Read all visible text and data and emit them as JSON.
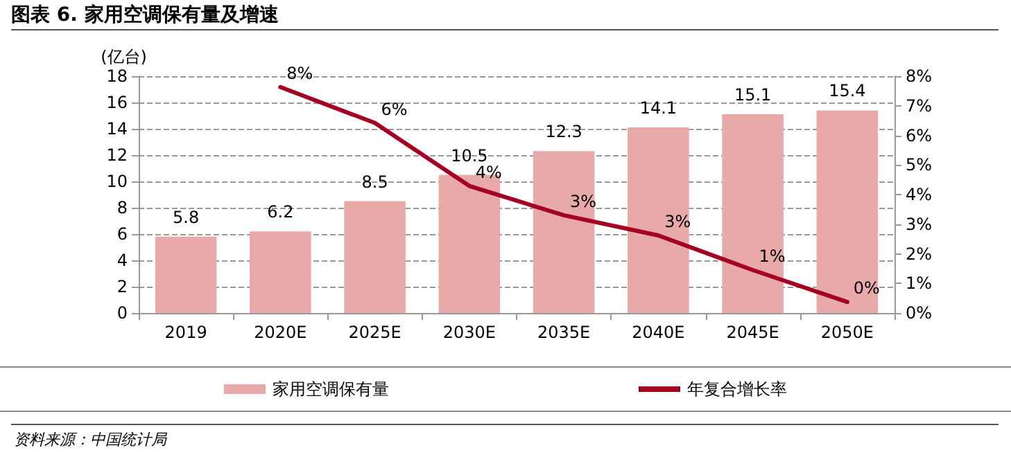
{
  "chart_data": {
    "type": "bar",
    "title": "图表 6. 家用空调保有量及增速",
    "ylabel": "(亿台)",
    "categories": [
      "2019",
      "2020E",
      "2025E",
      "2030E",
      "2035E",
      "2040E",
      "2045E",
      "2050E"
    ],
    "series": [
      {
        "name": "家用空调保有量",
        "color": "#e8a9a9",
        "values": [
          5.8,
          6.2,
          8.5,
          10.5,
          12.3,
          14.1,
          15.1,
          15.4
        ],
        "data_labels": true
      },
      {
        "name": "年复合增长率",
        "type": "line",
        "axis": "y2",
        "color": "#a50021",
        "values": [
          null,
          7.63,
          6.42,
          4.29,
          3.3,
          2.62,
          1.45,
          0.37
        ],
        "value_labels": [
          null,
          "8%",
          "6%",
          "4%",
          "3%",
          "3%",
          "1%",
          "0%"
        ]
      }
    ],
    "ylim": [
      0,
      18
    ],
    "yticks": [
      0,
      2,
      4,
      6,
      8,
      10,
      12,
      14,
      16,
      18
    ],
    "y2lim": [
      0,
      8
    ],
    "y2ticks": [
      {
        "value": 0,
        "label": "0%"
      },
      {
        "value": 1,
        "label": "1%"
      },
      {
        "value": 2,
        "label": "2%"
      },
      {
        "value": 3,
        "label": "3%"
      },
      {
        "value": 4,
        "label": "4%"
      },
      {
        "value": 5,
        "label": "5%"
      },
      {
        "value": 6,
        "label": "6%"
      },
      {
        "value": 7,
        "label": "7%"
      },
      {
        "value": 8,
        "label": "8%"
      }
    ],
    "grid": "y",
    "legend": "bottom",
    "marker": "none",
    "annotations": [
      "资料来源：中国统计局"
    ]
  }
}
